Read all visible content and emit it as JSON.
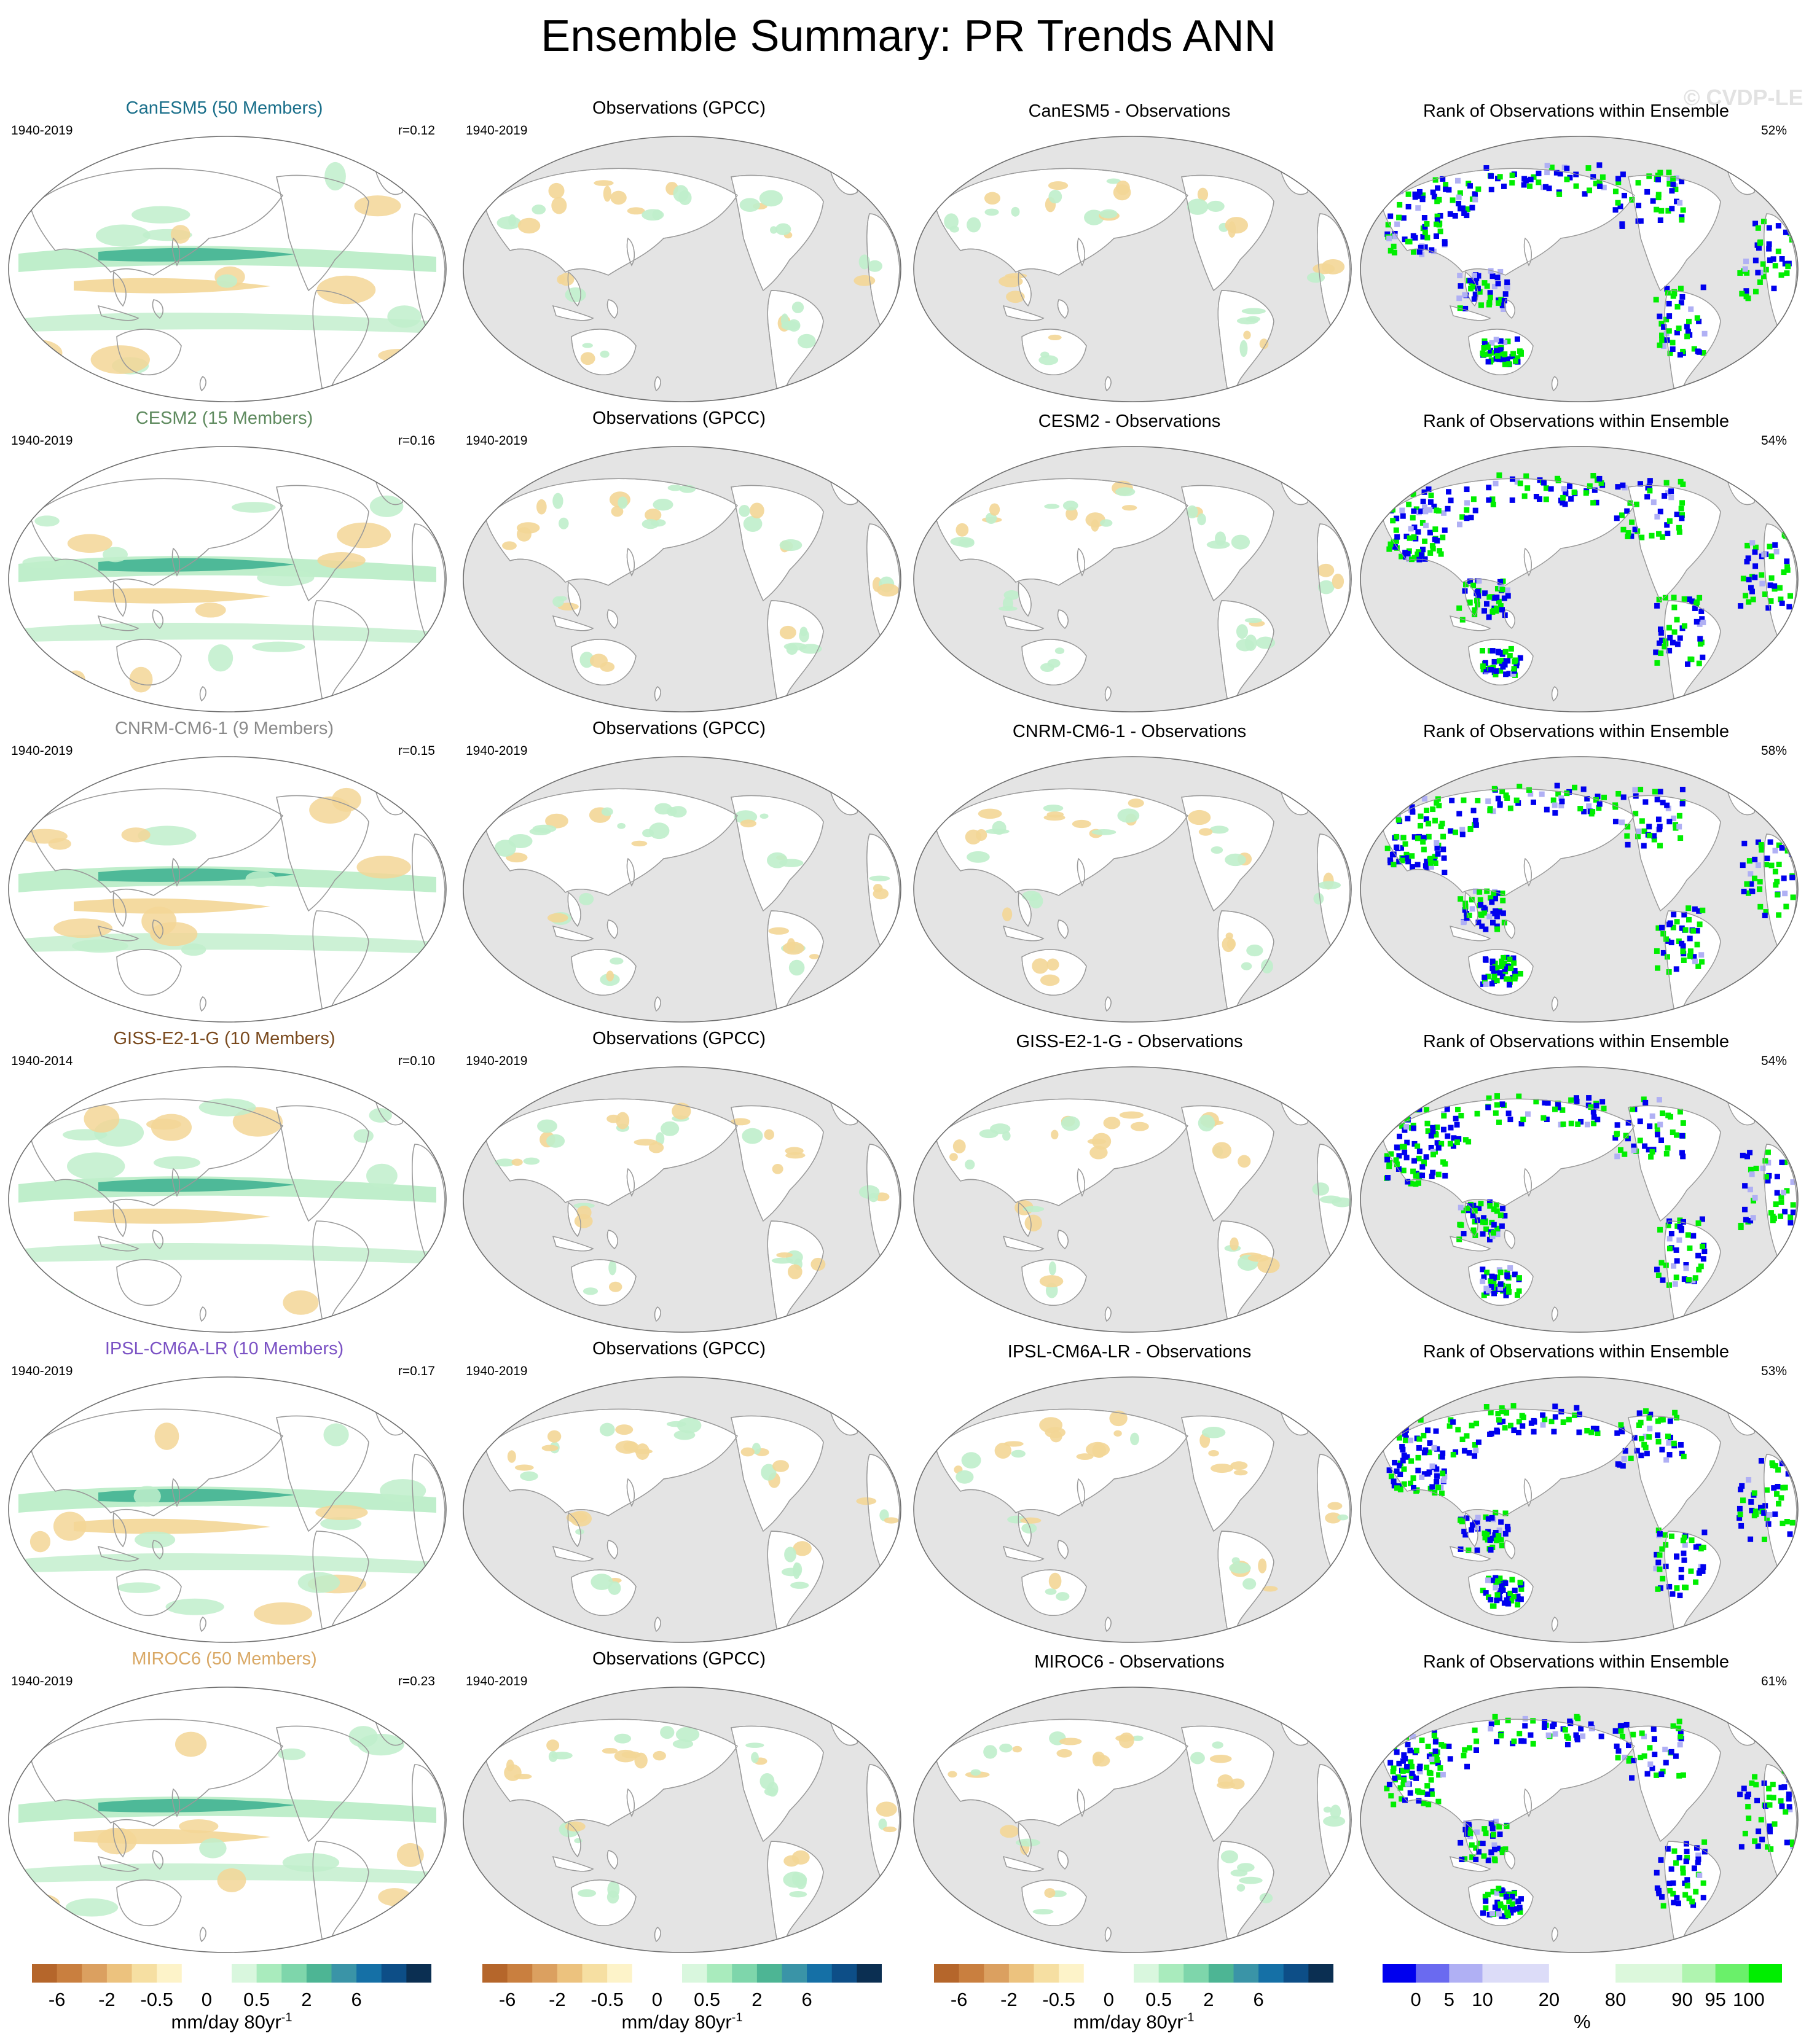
{
  "title": "Ensemble Summary: PR Trends ANN",
  "watermark": "© CVDP-LE",
  "obs_title": "Observations (GPCC)",
  "rank_title": "Rank of Observations within Ensemble",
  "colors": {
    "ocean_obs": "#e4e4e4",
    "land_outline": "#9a9a9a",
    "wet": "#bfeecb",
    "wet_strong": "#3aaf8f",
    "dry": "#f3d696",
    "dry_strong": "#c87a3a",
    "rank_low": "#0000ee",
    "rank_high": "#00ee00"
  },
  "rows": [
    {
      "model": "CanESM5 (50 Members)",
      "model_color": "#1a6f8a",
      "diff_title": "CanESM5 - Observations",
      "model_period": "1940-2019",
      "obs_period": "1940-2019",
      "r": "r=0.12",
      "rank_pct": "52%"
    },
    {
      "model": "CESM2 (15 Members)",
      "model_color": "#5e8a5e",
      "diff_title": "CESM2 - Observations",
      "model_period": "1940-2019",
      "obs_period": "1940-2019",
      "r": "r=0.16",
      "rank_pct": "54%"
    },
    {
      "model": "CNRM-CM6-1 (9 Members)",
      "model_color": "#8a8a8a",
      "diff_title": "CNRM-CM6-1 - Observations",
      "model_period": "1940-2019",
      "obs_period": "1940-2019",
      "r": "r=0.15",
      "rank_pct": "58%"
    },
    {
      "model": "GISS-E2-1-G (10 Members)",
      "model_color": "#7a4a1e",
      "diff_title": "GISS-E2-1-G - Observations",
      "model_period": "1940-2014",
      "obs_period": "1940-2019",
      "r": "r=0.10",
      "rank_pct": "54%"
    },
    {
      "model": "IPSL-CM6A-LR (10 Members)",
      "model_color": "#7b52c4",
      "diff_title": "IPSL-CM6A-LR - Observations",
      "model_period": "1940-2019",
      "obs_period": "1940-2019",
      "r": "r=0.17",
      "rank_pct": "53%"
    },
    {
      "model": "MIROC6 (50 Members)",
      "model_color": "#d9a865",
      "diff_title": "MIROC6 - Observations",
      "model_period": "1940-2019",
      "obs_period": "1940-2019",
      "r": "r=0.23",
      "rank_pct": "61%"
    }
  ],
  "colorbars": {
    "trend": {
      "colors": [
        "#b5662b",
        "#c97f3f",
        "#dba060",
        "#ecc27e",
        "#f6dfa2",
        "#fdf3c9",
        "#ffffff",
        "#ffffff",
        "#d9f7de",
        "#a9ebbd",
        "#7ed6ab",
        "#4db594",
        "#3a94a7",
        "#1570a6",
        "#0d4e87",
        "#0b2f52"
      ],
      "ticks": [
        {
          "label": "-6",
          "pos": 1
        },
        {
          "label": "-2",
          "pos": 3
        },
        {
          "label": "-0.5",
          "pos": 5
        },
        {
          "label": "0",
          "pos": 7
        },
        {
          "label": "0.5",
          "pos": 9
        },
        {
          "label": "2",
          "pos": 11
        },
        {
          "label": "6",
          "pos": 13
        }
      ],
      "unit": "mm/day 80yr",
      "unit_sup": "-1"
    },
    "rank": {
      "colors": [
        "#0000ee",
        "#6a6af0",
        "#b0b0f4",
        "#dcdcf8",
        "#dcdcf8",
        "#ffffff",
        "#ffffff",
        "#dcf8dc",
        "#dcf8dc",
        "#b0f4b0",
        "#6af06a",
        "#00ee00"
      ],
      "ticks": [
        {
          "label": "0",
          "pos": 1
        },
        {
          "label": "5",
          "pos": 2
        },
        {
          "label": "10",
          "pos": 3
        },
        {
          "label": "20",
          "pos": 5
        },
        {
          "label": "80",
          "pos": 7
        },
        {
          "label": "90",
          "pos": 9
        },
        {
          "label": "95",
          "pos": 10
        },
        {
          "label": "100",
          "pos": 11
        }
      ],
      "unit": "%"
    }
  }
}
